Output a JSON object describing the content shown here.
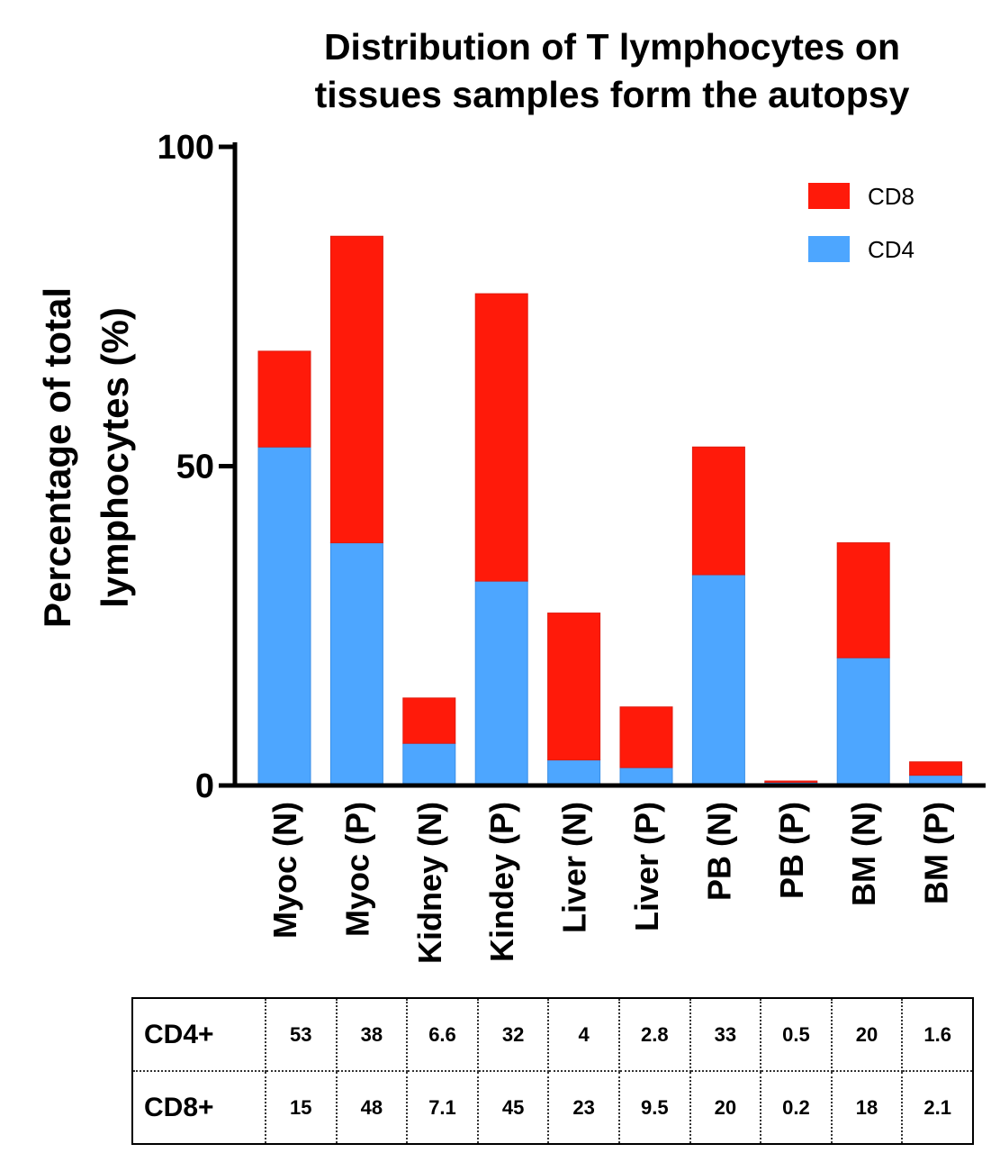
{
  "chart_data": {
    "type": "bar",
    "stacked": true,
    "title": "Distribution of T lymphocytes on tissues samples form the autopsy",
    "title_lines": [
      "Distribution of T lymphocytes on",
      "tissues samples form the autopsy"
    ],
    "ylabel": "Percentage of total lymphocytes (%)",
    "ylabel_lines": [
      "Percentage of total",
      "lymphocytes (%)"
    ],
    "xlabel": "",
    "ylim": [
      0,
      100
    ],
    "yticks": [
      0,
      50,
      100
    ],
    "legend_position": "top-right",
    "categories": [
      "Myoc (N)",
      "Myoc (P)",
      "Kidney (N)",
      "Kindey (P)",
      "Liver (N)",
      "Liver (P)",
      "PB (N)",
      "PB (P)",
      "BM (N)",
      "BM (P)"
    ],
    "series": [
      {
        "name": "CD4",
        "color": "#4da6ff",
        "values": [
          53,
          38,
          6.6,
          32,
          4,
          2.8,
          33,
          0.5,
          20,
          1.6
        ]
      },
      {
        "name": "CD8",
        "color": "#ff1a0a",
        "values": [
          15,
          48,
          7.1,
          45,
          23,
          9.5,
          20,
          0.2,
          18,
          2.1
        ]
      }
    ],
    "legend_order": [
      "CD8",
      "CD4"
    ],
    "table": {
      "rows": [
        {
          "label": "CD4+",
          "values": [
            "53",
            "38",
            "6.6",
            "32",
            "4",
            "2.8",
            "33",
            "0.5",
            "20",
            "1.6"
          ]
        },
        {
          "label": "CD8+",
          "values": [
            "15",
            "48",
            "7.1",
            "45",
            "23",
            "9.5",
            "20",
            "0.2",
            "18",
            "2.1"
          ]
        }
      ]
    }
  }
}
